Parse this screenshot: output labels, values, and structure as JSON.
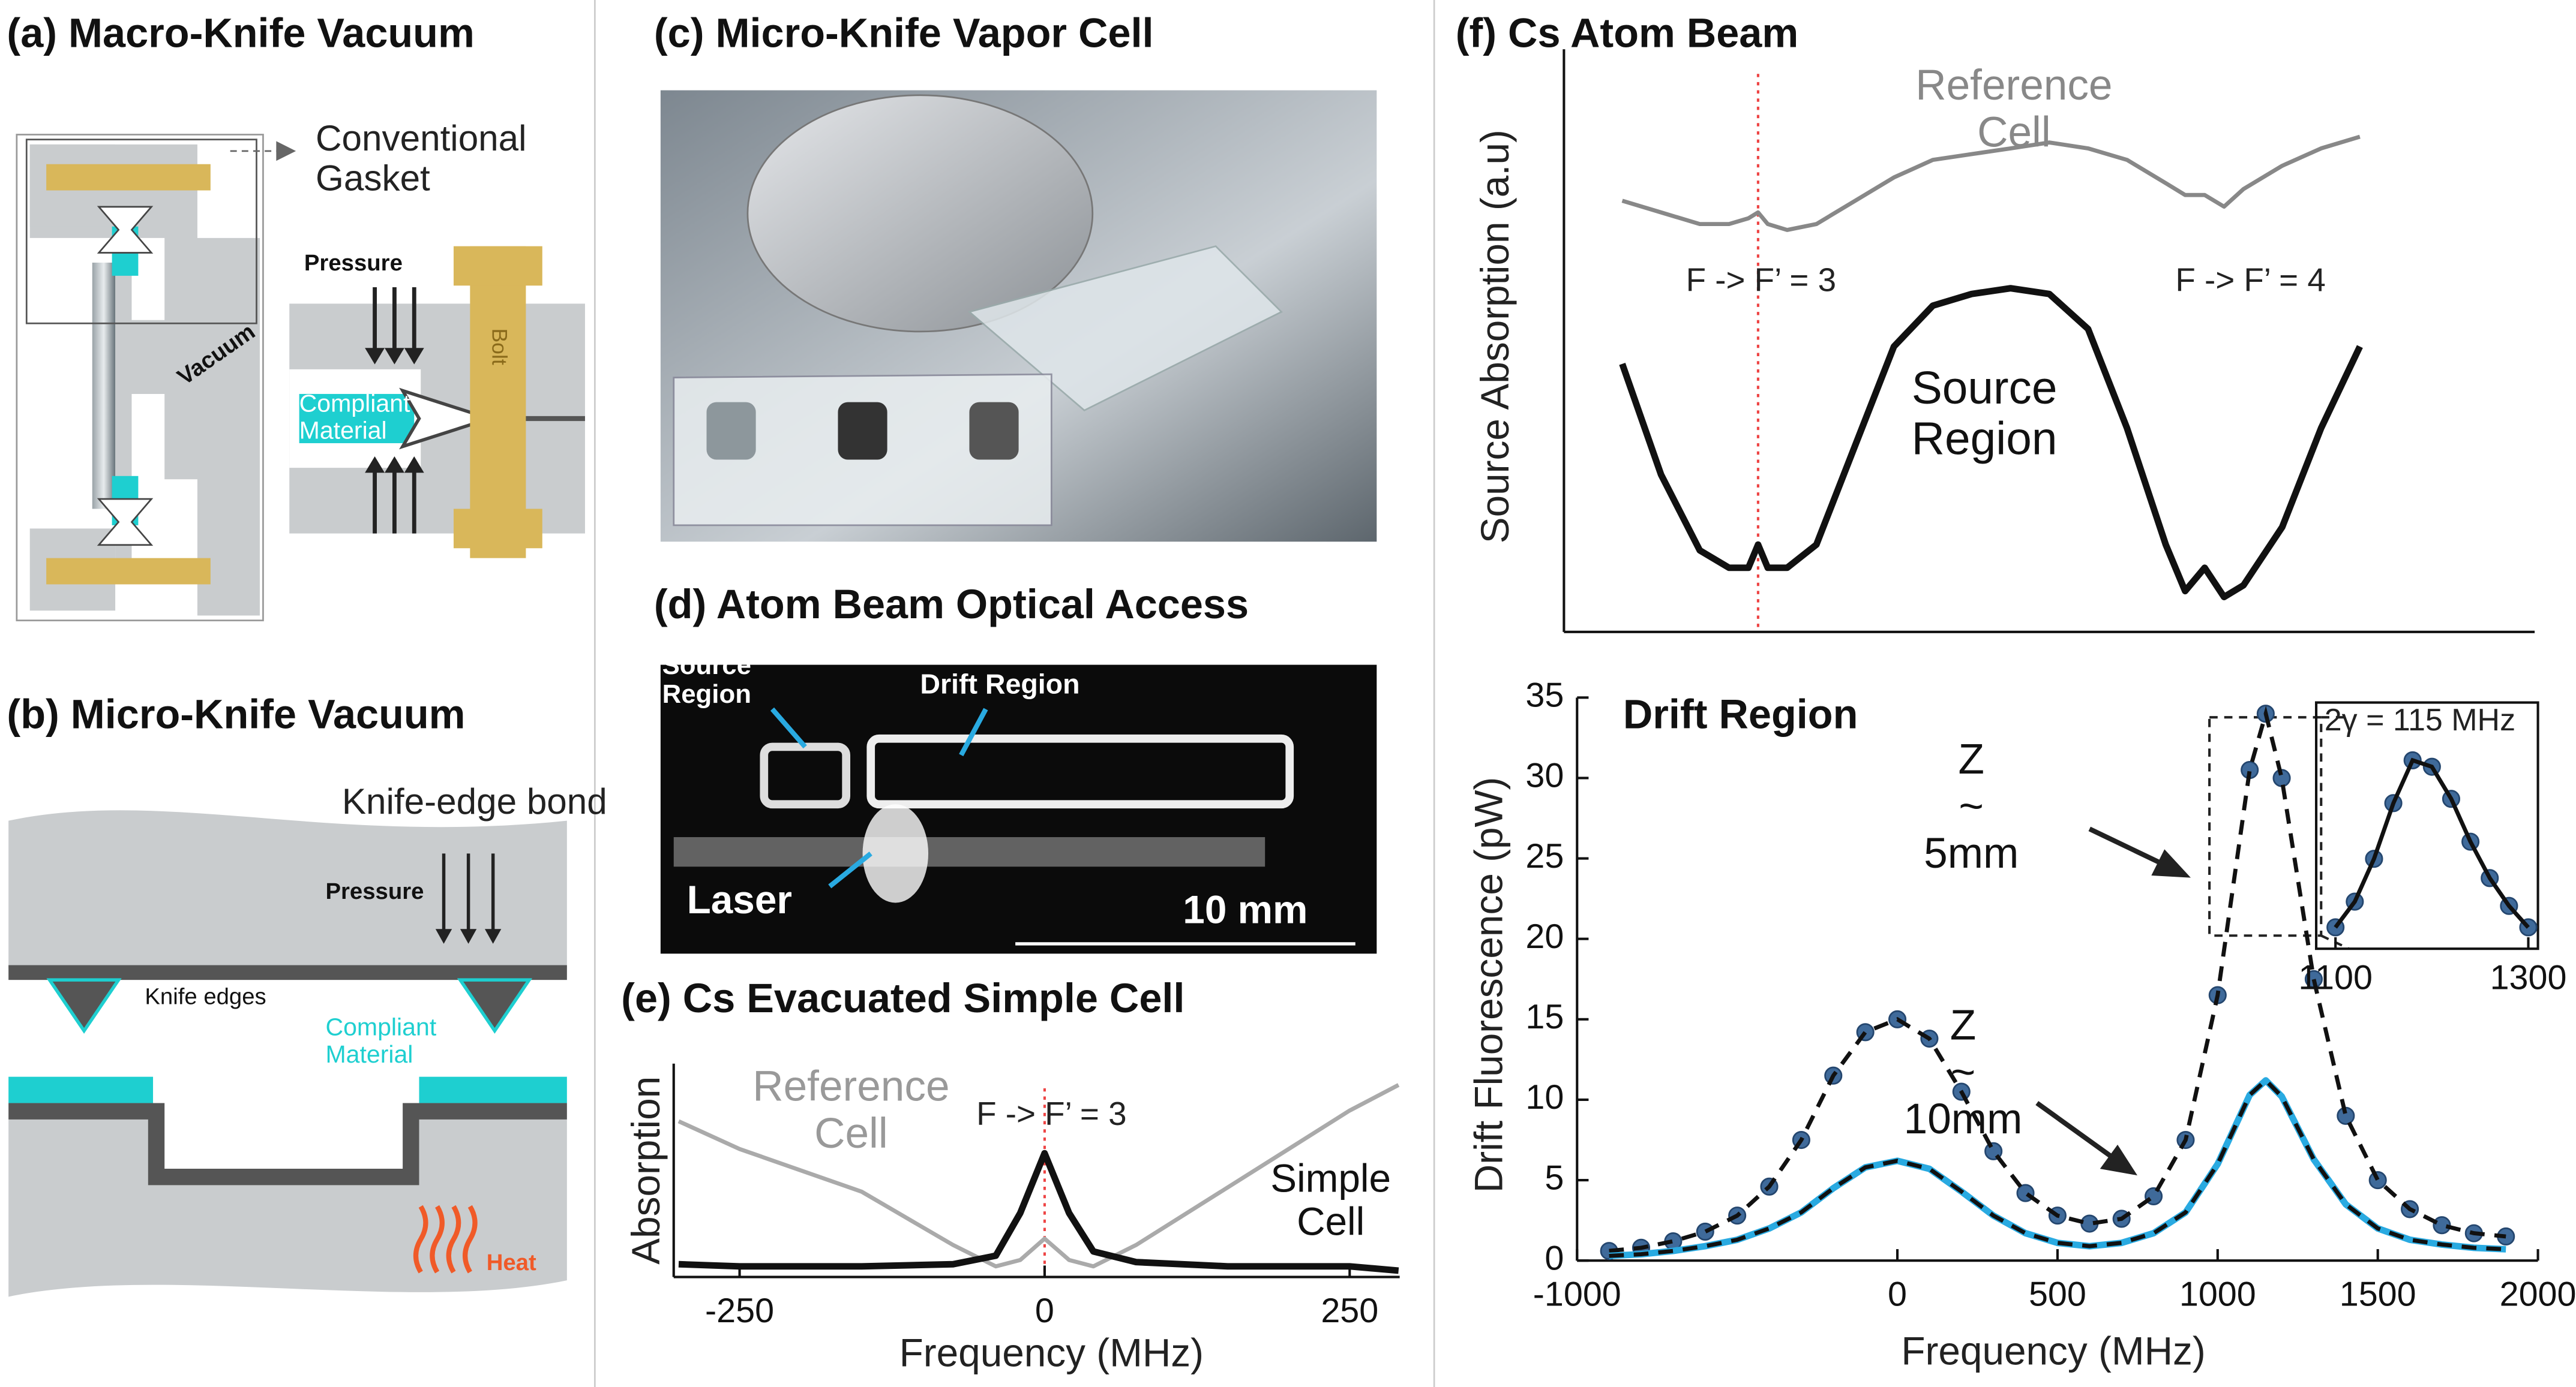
{
  "panels": {
    "a": {
      "title": "(a) Macro-Knife Vacuum",
      "gasket": "Conventional Gasket",
      "pressure": "Pressure",
      "vacuum": "Vacuum",
      "material": "Compliant Material",
      "bolt": "Bolt"
    },
    "b": {
      "title": "(b) Micro-Knife Vacuum",
      "bond": "Knife-edge bond",
      "pressure": "Pressure",
      "edges": "Knife edges",
      "material": "Compliant Material",
      "heat": "Heat"
    },
    "c": {
      "title": "(c) Micro-Knife Vapor Cell"
    },
    "d": {
      "title": "(d) Atom Beam Optical Access",
      "source": "Source Region",
      "drift": "Drift Region",
      "laser": "Laser",
      "scale": "10 mm"
    }
  },
  "chart_data": [
    {
      "type": "line",
      "title": "(e) Cs Evacuated Simple Cell",
      "xlabel": "Frequency (MHz)",
      "ylabel": "Absorption",
      "x": [
        -300,
        -250,
        -150,
        -75,
        -40,
        -20,
        0,
        20,
        40,
        75,
        150,
        250,
        290
      ],
      "series": [
        {
          "name": "Reference Cell",
          "color": "#aaaaaa",
          "values": [
            0.73,
            0.6,
            0.4,
            0.15,
            0.05,
            0.08,
            0.18,
            0.08,
            0.05,
            0.15,
            0.42,
            0.78,
            0.9
          ]
        },
        {
          "name": "Simple Cell",
          "color": "#111111",
          "values": [
            0.06,
            0.05,
            0.05,
            0.06,
            0.1,
            0.3,
            0.58,
            0.3,
            0.12,
            0.07,
            0.05,
            0.05,
            0.03
          ]
        }
      ],
      "xlim": [
        -304,
        291
      ],
      "ylim": [
        0,
        1
      ],
      "xticks": [
        -250,
        0,
        250
      ],
      "vline": 0,
      "vline_color": "#ee4444",
      "annotations": [
        "F -> F’ = 3"
      ]
    },
    {
      "type": "line",
      "title": "(f) Cs Atom Beam",
      "ylabel": "Source Absorption (a.u)",
      "x": [
        -350,
        -250,
        -150,
        -75,
        -25,
        0,
        25,
        75,
        150,
        250,
        350,
        450,
        550,
        650,
        750,
        850,
        950,
        1050,
        1100,
        1150,
        1200,
        1250,
        1350,
        1450,
        1550
      ],
      "series": [
        {
          "name": "Reference Cell",
          "color": "#888888",
          "values": [
            0.74,
            0.72,
            0.7,
            0.7,
            0.71,
            0.72,
            0.7,
            0.69,
            0.7,
            0.74,
            0.78,
            0.81,
            0.82,
            0.83,
            0.84,
            0.83,
            0.81,
            0.77,
            0.75,
            0.75,
            0.73,
            0.76,
            0.8,
            0.83,
            0.85
          ]
        },
        {
          "name": "Source Region",
          "color": "#111111",
          "values": [
            0.46,
            0.27,
            0.14,
            0.11,
            0.11,
            0.15,
            0.11,
            0.11,
            0.15,
            0.32,
            0.49,
            0.56,
            0.58,
            0.59,
            0.58,
            0.52,
            0.35,
            0.15,
            0.07,
            0.11,
            0.06,
            0.08,
            0.18,
            0.35,
            0.49
          ]
        }
      ],
      "xlim": [
        -500,
        2000
      ],
      "ylim": [
        0,
        1
      ],
      "vline": 0,
      "vline_color": "#ee4444",
      "annotations": [
        "F -> F’ = 3",
        "F -> F’ = 4"
      ]
    },
    {
      "type": "line",
      "title": "Drift Region",
      "xlabel": "Frequency (MHz)",
      "ylabel": "Drift  Fluorescence (pW)",
      "x": [
        -900,
        -800,
        -700,
        -600,
        -500,
        -400,
        -300,
        -200,
        -100,
        0,
        100,
        200,
        300,
        400,
        500,
        600,
        700,
        800,
        900,
        1000,
        1100,
        1150,
        1200,
        1300,
        1400,
        1500,
        1600,
        1700,
        1800,
        1900
      ],
      "series": [
        {
          "name": "Z ~ 5mm",
          "color": "#3f6a9a",
          "marker": "circle",
          "fit_line": "dashed",
          "values": [
            0.6,
            0.8,
            1.2,
            1.8,
            2.8,
            4.6,
            7.5,
            11.5,
            14.2,
            15.0,
            13.8,
            10.5,
            6.8,
            4.2,
            2.8,
            2.3,
            2.6,
            4.0,
            7.5,
            16.5,
            30.5,
            34.0,
            30.0,
            17.5,
            9.0,
            5.0,
            3.2,
            2.2,
            1.7,
            1.5
          ]
        },
        {
          "name": "Z ~ 10mm",
          "color": "#29aae1",
          "fit_line": "dashed",
          "values": [
            0.3,
            0.4,
            0.6,
            0.9,
            1.3,
            2.0,
            3.0,
            4.5,
            5.8,
            6.2,
            5.7,
            4.3,
            2.8,
            1.7,
            1.1,
            0.9,
            1.1,
            1.7,
            3.0,
            6.0,
            10.3,
            11.2,
            10.2,
            6.3,
            3.5,
            2.0,
            1.3,
            1.0,
            0.8,
            0.7
          ]
        }
      ],
      "xlim": [
        -1000,
        2000
      ],
      "ylim": [
        0,
        35
      ],
      "xticks": [
        -1000,
        0,
        500,
        1000,
        1500,
        2000
      ],
      "yticks": [
        0,
        5,
        10,
        15,
        20,
        25,
        30,
        35
      ]
    },
    {
      "type": "line",
      "x": [
        1100,
        1120,
        1140,
        1160,
        1180,
        1200,
        1220,
        1240,
        1260,
        1280,
        1300
      ],
      "series": [
        {
          "color": "#3f6a9a",
          "marker": "circle",
          "fit_line": "solid",
          "values": [
            0.1,
            0.22,
            0.42,
            0.68,
            0.88,
            0.85,
            0.7,
            0.5,
            0.33,
            0.2,
            0.1
          ]
        }
      ],
      "xlim": [
        1080,
        1310
      ],
      "ylim": [
        0,
        1.15
      ],
      "xticks": [
        1100,
        1300
      ],
      "annotations": [
        "2γ = 115 MHz"
      ]
    }
  ]
}
